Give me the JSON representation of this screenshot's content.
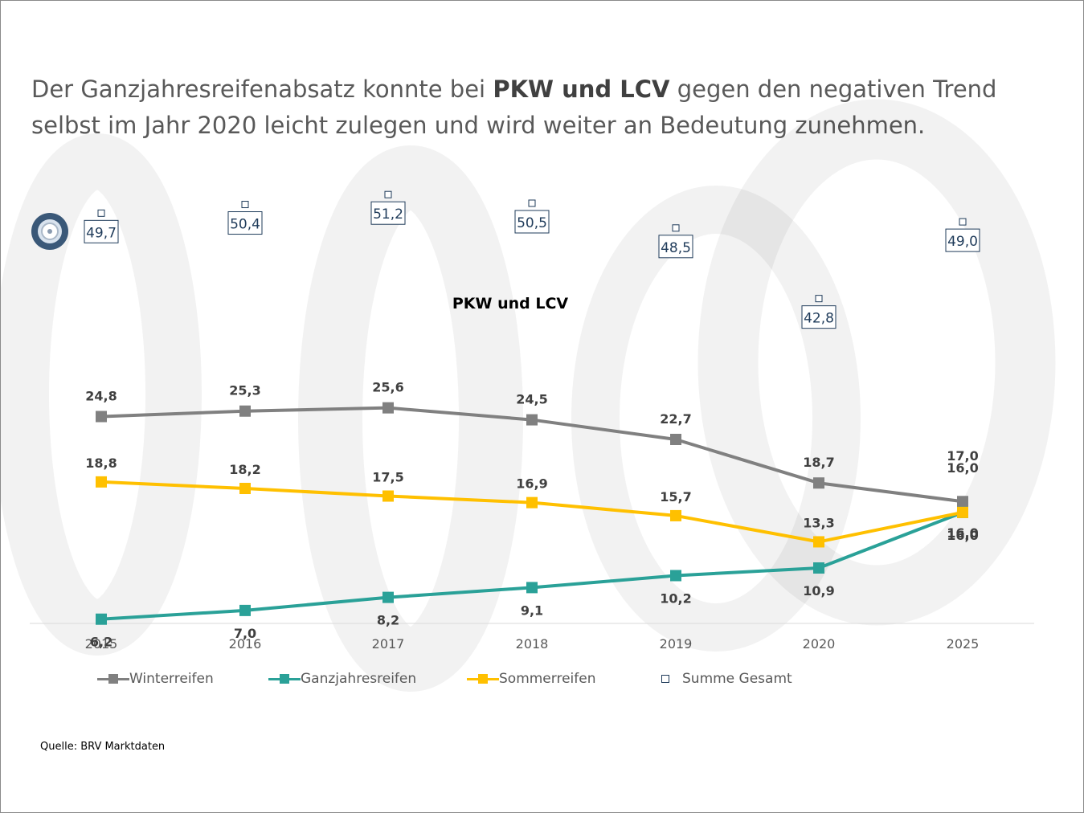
{
  "headline": {
    "part1": "Der Ganzjahresreifenabsatz konnte bei ",
    "bold": "PKW und LCV",
    "part2": " gegen den negativen Trend selbst im Jahr 2020 leicht zulegen und wird weiter an Bedeutung zunehmen."
  },
  "icon": "tire-icon",
  "source": "Quelle: BRV Marktdaten",
  "chart_data": {
    "type": "line",
    "title": "PKW und LCV",
    "categories": [
      "2015",
      "2016",
      "2017",
      "2018",
      "2019",
      "2020",
      "2025"
    ],
    "series": [
      {
        "name": "Winterreifen",
        "color": "#808080",
        "values": [
          24.8,
          25.3,
          25.6,
          24.5,
          22.7,
          18.7,
          17.0
        ],
        "labels": [
          "24,8",
          "25,3",
          "25,6",
          "24,5",
          "22,7",
          "18,7",
          "17,0"
        ]
      },
      {
        "name": "Ganzjahresreifen",
        "color": "#2aa198",
        "values": [
          6.2,
          7.0,
          8.2,
          9.1,
          10.2,
          10.9,
          16.0
        ],
        "labels": [
          "6,2",
          "7,0",
          "8,2",
          "9,1",
          "10,2",
          "10,9",
          "16,0"
        ]
      },
      {
        "name": "Sommerreifen",
        "color": "#ffc000",
        "values": [
          18.8,
          18.2,
          17.5,
          16.9,
          15.7,
          13.3,
          16.0
        ],
        "labels": [
          "18,8",
          "18,2",
          "17,5",
          "16,9",
          "15,7",
          "13,3",
          "16,0"
        ]
      }
    ],
    "total": {
      "name": "Summe Gesamt",
      "color": "#1f3b5a",
      "values": [
        49.7,
        50.4,
        51.2,
        50.5,
        48.5,
        42.8,
        49.0
      ],
      "labels": [
        "49,7",
        "50,4",
        "51,2",
        "50,5",
        "48,5",
        "42,8",
        "49,0"
      ]
    },
    "legend_position": "bottom",
    "grid": false
  }
}
